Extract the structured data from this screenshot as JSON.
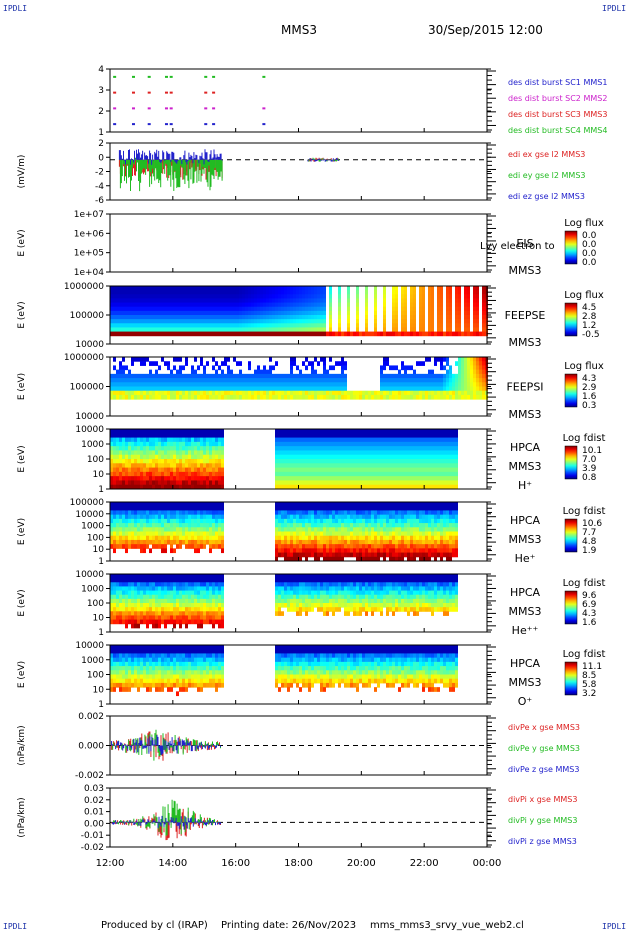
{
  "page": {
    "corner_label": "IPDLI",
    "mission": "MMS3",
    "datetime": "30/Sep/2015 12:00",
    "footer_producer": "Produced by cl (IRAP)",
    "footer_date": "Printing date: 26/Nov/2023",
    "footer_file": "mms_mms3_srvy_vue_web2.cl"
  },
  "time_axis": {
    "range_hours": [
      12,
      24
    ],
    "ticks": [
      "12:00",
      "14:00",
      "16:00",
      "18:00",
      "20:00",
      "22:00",
      "00:00"
    ]
  },
  "chart_data": [
    {
      "id": "burst",
      "type": "scatter",
      "ylabel": "",
      "yticks": [
        "4",
        "3",
        "2",
        "1"
      ],
      "ylim": [
        0.5,
        4.5
      ],
      "legend": [
        {
          "text": "des dist burst SC1 MMS1",
          "color": "#2222cc"
        },
        {
          "text": "des dist burst SC2 MMS2",
          "color": "#cc22cc"
        },
        {
          "text": "des dist burst SC3 MMS3",
          "color": "#dd2222"
        },
        {
          "text": "des dist burst SC4 MMS4",
          "color": "#22bb22"
        }
      ],
      "series": [
        {
          "level": 4,
          "color": "#22bb22",
          "x": [
            12.1,
            12.7,
            13.2,
            13.75,
            13.9,
            15.0,
            15.25,
            16.85
          ]
        },
        {
          "level": 3,
          "color": "#dd2222",
          "x": [
            12.1,
            12.7,
            13.2,
            13.75,
            13.9,
            15.0,
            15.25
          ]
        },
        {
          "level": 2,
          "color": "#cc22cc",
          "x": [
            12.1,
            12.7,
            13.2,
            13.75,
            13.9,
            15.0,
            15.25,
            16.85
          ]
        },
        {
          "level": 1,
          "color": "#2222cc",
          "x": [
            12.1,
            12.7,
            13.2,
            13.75,
            13.9,
            15.0,
            15.25,
            16.85
          ]
        }
      ]
    },
    {
      "id": "edi",
      "type": "line",
      "ylabel": "(mV/m)",
      "yticks": [
        "2",
        "0",
        "-2",
        "-4",
        "-6"
      ],
      "ylim": [
        -6,
        2.5
      ],
      "legend": [
        {
          "text": "edi ex gse l2 MMS3",
          "color": "#dd2222"
        },
        {
          "text": "edi ey gse l2 MMS3",
          "color": "#22bb22"
        },
        {
          "text": "edi ez gse l2 MMS3",
          "color": "#2222cc"
        }
      ],
      "segments": [
        [
          12.3,
          15.6
        ],
        [
          18.3,
          19.3
        ]
      ]
    },
    {
      "id": "eis",
      "type": "heatmap",
      "ylabel": "E (eV)",
      "yticks": [
        "1e+07",
        "1e+06",
        "1e+05",
        "1e+04"
      ],
      "instrument": [
        "EIS",
        "MMS3"
      ],
      "overlay_text": "Lvy electron to",
      "colorbar_title": "Log flux",
      "colorbar_ticks": [
        "0.0",
        "0.0",
        "0.0",
        "0.0"
      ]
    },
    {
      "id": "feepse",
      "type": "heatmap",
      "ylabel": "E (eV)",
      "yticks": [
        "1000000",
        "100000",
        "10000"
      ],
      "instrument": [
        "FEEPSE",
        "MMS3"
      ],
      "colorbar_title": "Log flux",
      "colorbar_ticks": [
        "4.5",
        "2.8",
        "1.2",
        "-0.5"
      ]
    },
    {
      "id": "feepsi",
      "type": "heatmap",
      "ylabel": "E (eV)",
      "yticks": [
        "1000000",
        "100000",
        "10000"
      ],
      "instrument": [
        "FEEPSI",
        "MMS3"
      ],
      "colorbar_title": "Log flux",
      "colorbar_ticks": [
        "4.3",
        "2.9",
        "1.6",
        "0.3"
      ]
    },
    {
      "id": "hpca_h",
      "type": "heatmap",
      "ylabel": "E (eV)",
      "yticks": [
        "10000",
        "1000",
        "100",
        "10",
        "1"
      ],
      "instrument": [
        "HPCA",
        "MMS3",
        "H⁺"
      ],
      "colorbar_title": "Log fdist",
      "colorbar_ticks": [
        "10.1",
        "7.0",
        "3.9",
        "0.8"
      ]
    },
    {
      "id": "hpca_he1",
      "type": "heatmap",
      "ylabel": "E (eV)",
      "yticks": [
        "100000",
        "10000",
        "1000",
        "100",
        "10",
        "1"
      ],
      "instrument": [
        "HPCA",
        "MMS3",
        "He⁺"
      ],
      "colorbar_title": "Log fdist",
      "colorbar_ticks": [
        "10.6",
        "7.7",
        "4.8",
        "1.9"
      ]
    },
    {
      "id": "hpca_he2",
      "type": "heatmap",
      "ylabel": "E (eV)",
      "yticks": [
        "10000",
        "1000",
        "100",
        "10",
        "1"
      ],
      "instrument": [
        "HPCA",
        "MMS3",
        "He⁺⁺"
      ],
      "colorbar_title": "Log fdist",
      "colorbar_ticks": [
        "9.6",
        "6.9",
        "4.3",
        "1.6"
      ]
    },
    {
      "id": "hpca_o",
      "type": "heatmap",
      "ylabel": "E (eV)",
      "yticks": [
        "10000",
        "1000",
        "100",
        "10",
        "1"
      ],
      "instrument": [
        "HPCA",
        "MMS3",
        "O⁺"
      ],
      "colorbar_title": "Log fdist",
      "colorbar_ticks": [
        "11.1",
        "8.5",
        "5.8",
        "3.2"
      ]
    },
    {
      "id": "divpe",
      "type": "line",
      "ylabel": "(nPa/km)",
      "yticks": [
        "0.002",
        "0.000",
        "-0.002"
      ],
      "ylim": [
        -0.003,
        0.003
      ],
      "legend": [
        {
          "text": "divPe x gse MMS3",
          "color": "#dd2222"
        },
        {
          "text": "divPe y gse MMS3",
          "color": "#22bb22"
        },
        {
          "text": "divPe z gse MMS3",
          "color": "#2222cc"
        }
      ],
      "segments": [
        [
          12.05,
          15.55
        ]
      ]
    },
    {
      "id": "divpi",
      "type": "line",
      "ylabel": "(nPa/km)",
      "yticks": [
        "0.03",
        "0.02",
        "0.01",
        "0.00",
        "-0.01",
        "-0.02"
      ],
      "ylim": [
        -0.025,
        0.035
      ],
      "legend": [
        {
          "text": "divPi x gse MMS3",
          "color": "#dd2222"
        },
        {
          "text": "divPi y gse MMS3",
          "color": "#22bb22"
        },
        {
          "text": "divPi z gse MMS3",
          "color": "#2222cc"
        }
      ],
      "segments": [
        [
          12.05,
          15.55
        ]
      ]
    }
  ]
}
